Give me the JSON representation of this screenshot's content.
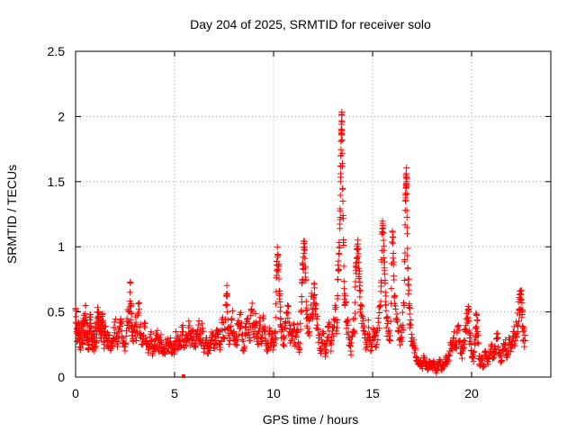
{
  "chart_data": {
    "type": "scatter",
    "title": "Day 204 of 2025, SRMTID for receiver solo",
    "xlabel": "GPS time / hours",
    "ylabel": "SRMTID / TECUs",
    "xlim": [
      0,
      24
    ],
    "ylim": [
      0,
      2.5
    ],
    "x_ticks": [
      0,
      5,
      10,
      15,
      20
    ],
    "x_tick_labels": [
      "0",
      "5",
      "10",
      "15",
      "20"
    ],
    "y_ticks": [
      0,
      0.5,
      1,
      1.5,
      2,
      2.5
    ],
    "y_tick_labels": [
      "0",
      "0.5",
      "1",
      "1.5",
      "2",
      "2.5"
    ],
    "grid": true,
    "marker": "+",
    "color": "#ff0000",
    "series": [
      {
        "name": "SRMTID",
        "points": [
          [
            0.0,
            0.52
          ],
          [
            0.05,
            0.35
          ],
          [
            0.1,
            0.28
          ],
          [
            0.15,
            0.42
          ],
          [
            0.2,
            0.3
          ],
          [
            0.25,
            0.22
          ],
          [
            0.3,
            0.38
          ],
          [
            0.35,
            0.25
          ],
          [
            0.4,
            0.45
          ],
          [
            0.45,
            0.3
          ],
          [
            0.5,
            0.55
          ],
          [
            0.55,
            0.28
          ],
          [
            0.6,
            0.4
          ],
          [
            0.65,
            0.22
          ],
          [
            0.7,
            0.35
          ],
          [
            0.75,
            0.48
          ],
          [
            0.8,
            0.3
          ],
          [
            0.85,
            0.25
          ],
          [
            0.9,
            0.33
          ],
          [
            0.95,
            0.2
          ],
          [
            1.0,
            0.38
          ],
          [
            1.05,
            0.28
          ],
          [
            1.1,
            0.45
          ],
          [
            1.15,
            0.5
          ],
          [
            1.2,
            0.35
          ],
          [
            1.25,
            0.42
          ],
          [
            1.3,
            0.3
          ],
          [
            1.35,
            0.48
          ],
          [
            1.4,
            0.38
          ],
          [
            1.45,
            0.25
          ],
          [
            1.5,
            0.35
          ],
          [
            1.6,
            0.28
          ],
          [
            1.7,
            0.32
          ],
          [
            1.8,
            0.22
          ],
          [
            1.9,
            0.3
          ],
          [
            2.0,
            0.38
          ],
          [
            2.1,
            0.25
          ],
          [
            2.2,
            0.35
          ],
          [
            2.3,
            0.42
          ],
          [
            2.4,
            0.3
          ],
          [
            2.5,
            0.2
          ],
          [
            2.6,
            0.45
          ],
          [
            2.7,
            0.38
          ],
          [
            2.75,
            0.65
          ],
          [
            2.8,
            0.55
          ],
          [
            2.85,
            0.32
          ],
          [
            2.9,
            0.28
          ],
          [
            3.0,
            0.4
          ],
          [
            3.1,
            0.35
          ],
          [
            3.2,
            0.52
          ],
          [
            3.3,
            0.3
          ],
          [
            3.4,
            0.25
          ],
          [
            3.5,
            0.38
          ],
          [
            3.6,
            0.28
          ],
          [
            3.7,
            0.22
          ],
          [
            3.8,
            0.33
          ],
          [
            3.9,
            0.18
          ],
          [
            4.0,
            0.25
          ],
          [
            4.1,
            0.32
          ],
          [
            4.2,
            0.22
          ],
          [
            4.3,
            0.28
          ],
          [
            4.4,
            0.18
          ],
          [
            4.5,
            0.22
          ],
          [
            4.6,
            0.27
          ],
          [
            4.7,
            0.2
          ],
          [
            4.8,
            0.25
          ],
          [
            4.9,
            0.19
          ],
          [
            5.0,
            0.24
          ],
          [
            5.1,
            0.3
          ],
          [
            5.2,
            0.22
          ],
          [
            5.3,
            0.28
          ],
          [
            5.4,
            0.35
          ],
          [
            5.5,
            0.27
          ],
          [
            5.6,
            0.32
          ],
          [
            5.7,
            0.38
          ],
          [
            5.8,
            0.3
          ],
          [
            5.9,
            0.36
          ],
          [
            6.0,
            0.25
          ],
          [
            6.1,
            0.33
          ],
          [
            6.2,
            0.4
          ],
          [
            6.3,
            0.28
          ],
          [
            6.4,
            0.35
          ],
          [
            6.5,
            0.22
          ],
          [
            6.6,
            0.3
          ],
          [
            6.7,
            0.18
          ],
          [
            6.8,
            0.26
          ],
          [
            6.9,
            0.32
          ],
          [
            7.0,
            0.22
          ],
          [
            7.1,
            0.28
          ],
          [
            7.2,
            0.35
          ],
          [
            7.3,
            0.25
          ],
          [
            7.4,
            0.42
          ],
          [
            7.5,
            0.3
          ],
          [
            7.6,
            0.55
          ],
          [
            7.65,
            0.62
          ],
          [
            7.7,
            0.38
          ],
          [
            7.8,
            0.28
          ],
          [
            7.9,
            0.45
          ],
          [
            8.0,
            0.35
          ],
          [
            8.1,
            0.25
          ],
          [
            8.2,
            0.4
          ],
          [
            8.3,
            0.48
          ],
          [
            8.4,
            0.32
          ],
          [
            8.5,
            0.2
          ],
          [
            8.6,
            0.38
          ],
          [
            8.7,
            0.45
          ],
          [
            8.8,
            0.3
          ],
          [
            8.9,
            0.52
          ],
          [
            9.0,
            0.35
          ],
          [
            9.1,
            0.42
          ],
          [
            9.2,
            0.25
          ],
          [
            9.3,
            0.38
          ],
          [
            9.4,
            0.3
          ],
          [
            9.5,
            0.45
          ],
          [
            9.6,
            0.28
          ],
          [
            9.7,
            0.2
          ],
          [
            9.8,
            0.35
          ],
          [
            9.9,
            0.27
          ],
          [
            10.0,
            0.24
          ],
          [
            10.1,
            0.3
          ],
          [
            10.15,
            0.78
          ],
          [
            10.2,
            0.92
          ],
          [
            10.25,
            0.85
          ],
          [
            10.3,
            0.6
          ],
          [
            10.35,
            0.45
          ],
          [
            10.4,
            0.35
          ],
          [
            10.5,
            0.25
          ],
          [
            10.6,
            0.42
          ],
          [
            10.7,
            0.55
          ],
          [
            10.8,
            0.35
          ],
          [
            10.9,
            0.28
          ],
          [
            11.0,
            0.4
          ],
          [
            11.1,
            0.25
          ],
          [
            11.2,
            0.35
          ],
          [
            11.3,
            0.22
          ],
          [
            11.4,
            0.5
          ],
          [
            11.45,
            0.75
          ],
          [
            11.5,
            0.92
          ],
          [
            11.55,
            0.98
          ],
          [
            11.6,
            0.8
          ],
          [
            11.65,
            0.58
          ],
          [
            11.7,
            0.45
          ],
          [
            11.8,
            0.35
          ],
          [
            11.9,
            0.62
          ],
          [
            12.0,
            0.48
          ],
          [
            12.05,
            0.72
          ],
          [
            12.1,
            0.55
          ],
          [
            12.2,
            0.4
          ],
          [
            12.3,
            0.3
          ],
          [
            12.4,
            0.22
          ],
          [
            12.5,
            0.35
          ],
          [
            12.6,
            0.18
          ],
          [
            12.7,
            0.28
          ],
          [
            12.8,
            0.42
          ],
          [
            12.9,
            0.2
          ],
          [
            13.0,
            0.38
          ],
          [
            13.1,
            0.55
          ],
          [
            13.2,
            0.42
          ],
          [
            13.25,
            0.75
          ],
          [
            13.3,
            0.95
          ],
          [
            13.35,
            1.14
          ],
          [
            13.38,
            1.5
          ],
          [
            13.4,
            1.7
          ],
          [
            13.42,
            1.9
          ],
          [
            13.44,
            2.01
          ],
          [
            13.46,
            1.82
          ],
          [
            13.5,
            1.35
          ],
          [
            13.55,
            0.85
          ],
          [
            13.6,
            0.55
          ],
          [
            13.7,
            0.42
          ],
          [
            13.8,
            0.3
          ],
          [
            13.9,
            0.2
          ],
          [
            14.0,
            0.35
          ],
          [
            14.1,
            0.45
          ],
          [
            14.15,
            0.82
          ],
          [
            14.2,
            0.98
          ],
          [
            14.25,
            1.02
          ],
          [
            14.3,
            0.88
          ],
          [
            14.35,
            0.7
          ],
          [
            14.4,
            0.55
          ],
          [
            14.5,
            0.38
          ],
          [
            14.6,
            0.3
          ],
          [
            14.7,
            0.25
          ],
          [
            14.8,
            0.38
          ],
          [
            14.9,
            0.2
          ],
          [
            15.0,
            0.28
          ],
          [
            15.1,
            0.35
          ],
          [
            15.2,
            0.25
          ],
          [
            15.3,
            0.42
          ],
          [
            15.4,
            0.55
          ],
          [
            15.45,
            0.9
          ],
          [
            15.5,
            1.18
          ],
          [
            15.55,
            1.05
          ],
          [
            15.6,
            0.82
          ],
          [
            15.65,
            0.65
          ],
          [
            15.7,
            0.45
          ],
          [
            15.8,
            0.35
          ],
          [
            15.9,
            0.28
          ],
          [
            16.0,
            1.12
          ],
          [
            16.05,
            0.95
          ],
          [
            16.1,
            0.62
          ],
          [
            16.2,
            0.45
          ],
          [
            16.3,
            0.35
          ],
          [
            16.4,
            0.3
          ],
          [
            16.5,
            0.38
          ],
          [
            16.6,
            0.55
          ],
          [
            16.65,
            1.28
          ],
          [
            16.68,
            1.45
          ],
          [
            16.7,
            1.56
          ],
          [
            16.72,
            1.52
          ],
          [
            16.75,
            1.1
          ],
          [
            16.8,
            0.75
          ],
          [
            16.85,
            0.55
          ],
          [
            16.9,
            0.4
          ],
          [
            17.0,
            0.3
          ],
          [
            17.1,
            0.22
          ],
          [
            17.2,
            0.15
          ],
          [
            17.3,
            0.1
          ],
          [
            17.4,
            0.12
          ],
          [
            17.5,
            0.08
          ],
          [
            17.6,
            0.15
          ],
          [
            17.7,
            0.1
          ],
          [
            17.8,
            0.06
          ],
          [
            17.9,
            0.12
          ],
          [
            18.0,
            0.08
          ],
          [
            18.1,
            0.1
          ],
          [
            18.2,
            0.05
          ],
          [
            18.3,
            0.09
          ],
          [
            18.4,
            0.12
          ],
          [
            18.5,
            0.06
          ],
          [
            18.6,
            0.1
          ],
          [
            18.7,
            0.15
          ],
          [
            18.8,
            0.12
          ],
          [
            18.9,
            0.2
          ],
          [
            19.0,
            0.25
          ],
          [
            19.1,
            0.3
          ],
          [
            19.2,
            0.22
          ],
          [
            19.3,
            0.38
          ],
          [
            19.4,
            0.28
          ],
          [
            19.5,
            0.18
          ],
          [
            19.6,
            0.25
          ],
          [
            19.7,
            0.35
          ],
          [
            19.8,
            0.45
          ],
          [
            19.85,
            0.5
          ],
          [
            19.9,
            0.3
          ],
          [
            20.0,
            0.2
          ],
          [
            20.1,
            0.12
          ],
          [
            20.2,
            0.38
          ],
          [
            20.25,
            0.48
          ],
          [
            20.3,
            0.35
          ],
          [
            20.4,
            0.1
          ],
          [
            20.5,
            0.15
          ],
          [
            20.6,
            0.08
          ],
          [
            20.7,
            0.2
          ],
          [
            20.8,
            0.12
          ],
          [
            20.9,
            0.18
          ],
          [
            21.0,
            0.25
          ],
          [
            21.1,
            0.15
          ],
          [
            21.2,
            0.22
          ],
          [
            21.3,
            0.3
          ],
          [
            21.4,
            0.18
          ],
          [
            21.5,
            0.12
          ],
          [
            21.6,
            0.2
          ],
          [
            21.7,
            0.25
          ],
          [
            21.8,
            0.15
          ],
          [
            21.9,
            0.3
          ],
          [
            22.0,
            0.22
          ],
          [
            22.1,
            0.35
          ],
          [
            22.2,
            0.28
          ],
          [
            22.3,
            0.4
          ],
          [
            22.4,
            0.52
          ],
          [
            22.45,
            0.6
          ],
          [
            22.5,
            0.63
          ],
          [
            22.55,
            0.48
          ],
          [
            22.6,
            0.35
          ],
          [
            22.7,
            0.28
          ]
        ]
      }
    ]
  }
}
